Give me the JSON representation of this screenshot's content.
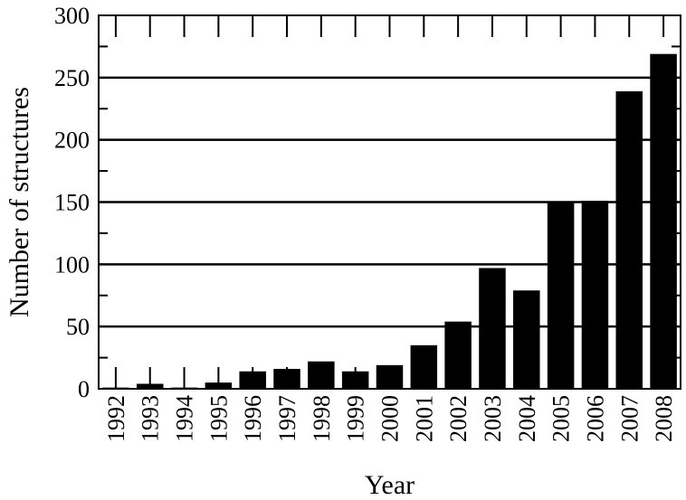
{
  "chart_data": {
    "type": "bar",
    "title": "",
    "xlabel": "Year",
    "ylabel": "Number of structures",
    "ylim": [
      0,
      300
    ],
    "yticks": [
      0,
      50,
      100,
      150,
      200,
      250,
      300
    ],
    "grid": "horizontal major gridlines",
    "categories": [
      "1992",
      "1993",
      "1994",
      "1995",
      "1996",
      "1997",
      "1998",
      "1999",
      "2000",
      "2001",
      "2002",
      "2003",
      "2004",
      "2005",
      "2006",
      "2007",
      "2008"
    ],
    "values": [
      1,
      4,
      1,
      5,
      14,
      16,
      22,
      14,
      19,
      35,
      54,
      97,
      79,
      150,
      151,
      239,
      269
    ],
    "bar_color": "#000000"
  }
}
